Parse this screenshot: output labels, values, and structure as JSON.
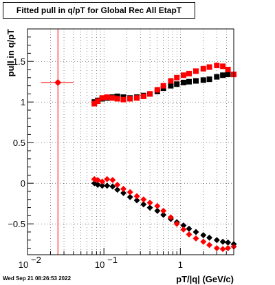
{
  "title": "Fitted pull in q/pT for Global Rec All EtapT",
  "timestamp": "Wed Sep 21 08:26:53 2022",
  "chart_data": {
    "type": "scatter",
    "title": "Fitted pull in q/pT for Global Rec All EtapT",
    "xlabel": "pT/|q| (GeV/c)",
    "ylabel": "pull in q/pT",
    "xscale": "log",
    "xlim": [
      0.01,
      5
    ],
    "ylim": [
      -0.88,
      1.9
    ],
    "grid": true,
    "x_tick_labels": [
      {
        "v": 0.01,
        "base": "10",
        "exp": "−2"
      },
      {
        "v": 0.1,
        "base": "10",
        "exp": "−1"
      },
      {
        "v": 1,
        "base": "1",
        "exp": ""
      }
    ],
    "y_ticks": [
      -0.5,
      0,
      0.5,
      1,
      1.5
    ],
    "y_tick_labels": [
      "−0.5",
      "0",
      "0.5",
      "1",
      "1.5"
    ],
    "colors": {
      "series_a": "#000000",
      "series_b": "#ff0000"
    },
    "series": [
      {
        "color": "#000000",
        "marker": "square",
        "x": [
          0.075,
          0.083,
          0.095,
          0.11,
          0.13,
          0.15,
          0.18,
          0.22,
          0.27,
          0.33,
          0.4,
          0.5,
          0.6,
          0.75,
          0.9,
          1.1,
          1.3,
          1.6,
          2.0,
          2.4,
          3.0,
          3.6,
          4.2,
          5.0
        ],
        "y": [
          1.0,
          1.02,
          1.04,
          1.05,
          1.06,
          1.07,
          1.06,
          1.05,
          1.06,
          1.08,
          1.1,
          1.13,
          1.17,
          1.2,
          1.22,
          1.24,
          1.25,
          1.26,
          1.27,
          1.28,
          1.31,
          1.33,
          1.34,
          1.34
        ]
      },
      {
        "color": "#ff0000",
        "marker": "square",
        "x": [
          0.075,
          0.083,
          0.095,
          0.11,
          0.13,
          0.15,
          0.18,
          0.22,
          0.27,
          0.33,
          0.4,
          0.5,
          0.6,
          0.75,
          0.9,
          1.1,
          1.3,
          1.6,
          2.0,
          2.4,
          3.0,
          3.6,
          4.2,
          5.0
        ],
        "y": [
          0.98,
          1.01,
          1.05,
          1.06,
          1.05,
          1.04,
          1.03,
          1.04,
          1.05,
          1.07,
          1.1,
          1.15,
          1.2,
          1.26,
          1.3,
          1.33,
          1.35,
          1.38,
          1.41,
          1.43,
          1.45,
          1.44,
          1.4,
          1.34
        ]
      },
      {
        "color": "#000000",
        "marker": "diamond",
        "x": [
          0.075,
          0.083,
          0.095,
          0.11,
          0.13,
          0.15,
          0.18,
          0.22,
          0.27,
          0.33,
          0.4,
          0.5,
          0.6,
          0.75,
          0.9,
          1.1,
          1.3,
          1.6,
          2.0,
          2.4,
          3.0,
          3.6,
          4.2,
          5.0
        ],
        "y": [
          0.0,
          -0.02,
          -0.03,
          -0.03,
          -0.04,
          -0.08,
          -0.12,
          -0.17,
          -0.21,
          -0.26,
          -0.3,
          -0.34,
          -0.39,
          -0.44,
          -0.48,
          -0.52,
          -0.56,
          -0.6,
          -0.64,
          -0.67,
          -0.7,
          -0.72,
          -0.73,
          -0.75
        ]
      },
      {
        "color": "#ff0000",
        "marker": "diamond",
        "x": [
          0.075,
          0.083,
          0.095,
          0.11,
          0.13,
          0.15,
          0.18,
          0.22,
          0.27,
          0.33,
          0.4,
          0.5,
          0.6,
          0.75,
          0.9,
          1.1,
          1.3,
          1.6,
          2.0,
          2.4,
          3.0,
          3.6,
          4.2,
          5.0
        ],
        "y": [
          0.05,
          0.04,
          0.02,
          0.05,
          0.04,
          -0.02,
          -0.07,
          -0.11,
          -0.16,
          -0.2,
          -0.24,
          -0.28,
          -0.34,
          -0.42,
          -0.5,
          -0.57,
          -0.63,
          -0.68,
          -0.72,
          -0.76,
          -0.8,
          -0.81,
          -0.8,
          -0.78
        ]
      }
    ],
    "reference_point": {
      "color": "#ff0000",
      "x": 0.025,
      "y": 1.24,
      "x_err_low": 0.015,
      "x_err_high": 0.04
    }
  }
}
